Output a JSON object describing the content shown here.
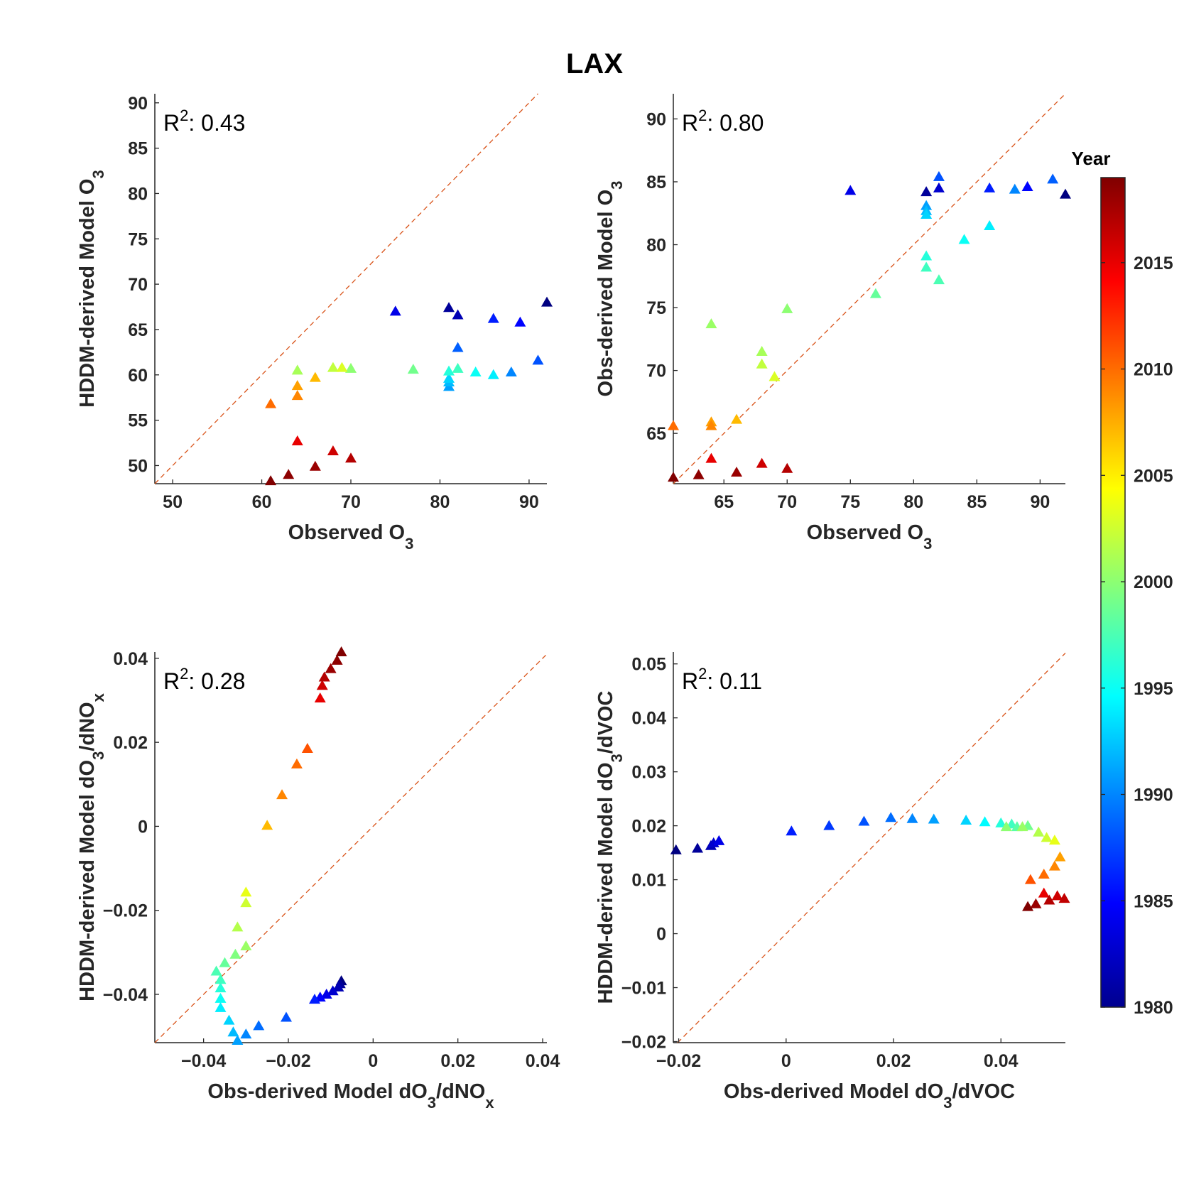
{
  "figure_title": "LAX",
  "colorbar": {
    "title": "Year",
    "min": 1980,
    "max": 2019,
    "ticks": [
      1980,
      1985,
      1990,
      1995,
      2000,
      2005,
      2010,
      2015
    ]
  },
  "chart_data": [
    {
      "type": "scatter",
      "xlabel": {
        "main": "Observed O",
        "sub": "3",
        "tail": ""
      },
      "ylabel": {
        "main": "HDDM-derived Model O",
        "sub": "3",
        "tail": ""
      },
      "annotation": {
        "text": "R",
        "sup": "2",
        "rest": ": 0.43"
      },
      "xlim": [
        48,
        92
      ],
      "ylim": [
        48,
        91
      ],
      "xticks": [
        50,
        60,
        70,
        80,
        90
      ],
      "yticks": [
        50,
        55,
        60,
        65,
        70,
        75,
        80,
        85,
        90
      ],
      "one_to_one_line": true,
      "series": [
        {
          "name": "",
          "points": [
            {
              "x": 92,
              "y": 68,
              "year": 1980
            },
            {
              "x": 81,
              "y": 67.4,
              "year": 1981
            },
            {
              "x": 82,
              "y": 66.6,
              "year": 1982
            },
            {
              "x": 75,
              "y": 67,
              "year": 1984
            },
            {
              "x": 89,
              "y": 65.8,
              "year": 1985
            },
            {
              "x": 86,
              "y": 66.2,
              "year": 1986
            },
            {
              "x": 91,
              "y": 61.6,
              "year": 1988
            },
            {
              "x": 82,
              "y": 63,
              "year": 1988.5
            },
            {
              "x": 88,
              "y": 60.3,
              "year": 1990
            },
            {
              "x": 81,
              "y": 58.7,
              "year": 1991
            },
            {
              "x": 81,
              "y": 59.2,
              "year": 1992
            },
            {
              "x": 81,
              "y": 59.6,
              "year": 1993
            },
            {
              "x": 86,
              "y": 60,
              "year": 1994
            },
            {
              "x": 84,
              "y": 60.3,
              "year": 1995
            },
            {
              "x": 81,
              "y": 60.4,
              "year": 1996
            },
            {
              "x": 82,
              "y": 60.7,
              "year": 1997
            },
            {
              "x": 77,
              "y": 60.6,
              "year": 1999
            },
            {
              "x": 70,
              "y": 60.7,
              "year": 2000
            },
            {
              "x": 64,
              "y": 60.5,
              "year": 2001
            },
            {
              "x": 68,
              "y": 60.8,
              "year": 2002
            },
            {
              "x": 69,
              "y": 60.8,
              "year": 2003
            },
            {
              "x": 66,
              "y": 59.7,
              "year": 2007
            },
            {
              "x": 64,
              "y": 58.8,
              "year": 2008
            },
            {
              "x": 64,
              "y": 57.7,
              "year": 2009
            },
            {
              "x": 61,
              "y": 56.8,
              "year": 2010
            },
            {
              "x": 64,
              "y": 52.7,
              "year": 2015
            },
            {
              "x": 68,
              "y": 51.6,
              "year": 2016
            },
            {
              "x": 70,
              "y": 50.8,
              "year": 2017
            },
            {
              "x": 66,
              "y": 49.9,
              "year": 2018
            },
            {
              "x": 63,
              "y": 49,
              "year": 2018.5
            },
            {
              "x": 61,
              "y": 48.3,
              "year": 2019
            }
          ]
        }
      ]
    },
    {
      "type": "scatter",
      "xlabel": {
        "main": "Observed O",
        "sub": "3",
        "tail": ""
      },
      "ylabel": {
        "main": "Obs-derived Model O",
        "sub": "3",
        "tail": ""
      },
      "annotation": {
        "text": "R",
        "sup": "2",
        "rest": ": 0.80"
      },
      "xlim": [
        61,
        92
      ],
      "ylim": [
        61,
        92
      ],
      "xticks": [
        65,
        70,
        75,
        80,
        85,
        90
      ],
      "yticks": [
        65,
        70,
        75,
        80,
        85,
        90
      ],
      "one_to_one_line": true,
      "series": [
        {
          "name": "",
          "points": [
            {
              "x": 92,
              "y": 84,
              "year": 1980
            },
            {
              "x": 81,
              "y": 84.2,
              "year": 1981
            },
            {
              "x": 82,
              "y": 84.5,
              "year": 1983
            },
            {
              "x": 75,
              "y": 84.3,
              "year": 1984
            },
            {
              "x": 89,
              "y": 84.6,
              "year": 1985
            },
            {
              "x": 86,
              "y": 84.5,
              "year": 1986
            },
            {
              "x": 82,
              "y": 85.4,
              "year": 1988
            },
            {
              "x": 91,
              "y": 85.2,
              "year": 1988.5
            },
            {
              "x": 88,
              "y": 84.4,
              "year": 1990
            },
            {
              "x": 81,
              "y": 83.1,
              "year": 1991
            },
            {
              "x": 81,
              "y": 82.7,
              "year": 1992
            },
            {
              "x": 81,
              "y": 82.4,
              "year": 1993
            },
            {
              "x": 86,
              "y": 81.5,
              "year": 1994
            },
            {
              "x": 84,
              "y": 80.4,
              "year": 1995
            },
            {
              "x": 81,
              "y": 79.1,
              "year": 1996
            },
            {
              "x": 81,
              "y": 78.2,
              "year": 1997
            },
            {
              "x": 82,
              "y": 77.2,
              "year": 1997.5
            },
            {
              "x": 77,
              "y": 76.1,
              "year": 1998.5
            },
            {
              "x": 70,
              "y": 74.9,
              "year": 2000
            },
            {
              "x": 64,
              "y": 73.7,
              "year": 2000.5
            },
            {
              "x": 68,
              "y": 71.5,
              "year": 2001
            },
            {
              "x": 68,
              "y": 70.5,
              "year": 2002
            },
            {
              "x": 69,
              "y": 69.5,
              "year": 2003
            },
            {
              "x": 66,
              "y": 66.1,
              "year": 2007
            },
            {
              "x": 64,
              "y": 65.9,
              "year": 2008
            },
            {
              "x": 64,
              "y": 65.6,
              "year": 2009
            },
            {
              "x": 61,
              "y": 65.6,
              "year": 2010
            },
            {
              "x": 64,
              "y": 63,
              "year": 2015
            },
            {
              "x": 68,
              "y": 62.6,
              "year": 2016
            },
            {
              "x": 70,
              "y": 62.2,
              "year": 2017
            },
            {
              "x": 66,
              "y": 61.9,
              "year": 2018
            },
            {
              "x": 63,
              "y": 61.7,
              "year": 2018.5
            },
            {
              "x": 61,
              "y": 61.5,
              "year": 2019
            }
          ]
        }
      ]
    },
    {
      "type": "scatter",
      "xlabel": {
        "main": "Obs-derived Model dO",
        "sub": "3",
        "tail": "/dNO",
        "sub2": "x"
      },
      "ylabel": {
        "main": "HDDM-derived Model dO",
        "sub": "3",
        "tail": "/dNO",
        "sub2": "x"
      },
      "annotation": {
        "text": "R",
        "sup": "2",
        "rest": ": 0.28"
      },
      "xlim": [
        -0.0515,
        0.041
      ],
      "ylim": [
        -0.0515,
        0.0415
      ],
      "xticks": [
        -0.04,
        -0.02,
        0,
        0.02,
        0.04
      ],
      "yticks": [
        -0.04,
        -0.02,
        0,
        0.02,
        0.04
      ],
      "one_to_one_line": true,
      "series": [
        {
          "name": "",
          "points": [
            {
              "x": -0.0075,
              "y": -0.0368,
              "year": 1980
            },
            {
              "x": -0.0078,
              "y": -0.0375,
              "year": 1981
            },
            {
              "x": -0.0082,
              "y": -0.0383,
              "year": 1982
            },
            {
              "x": -0.0095,
              "y": -0.0392,
              "year": 1983
            },
            {
              "x": -0.011,
              "y": -0.04,
              "year": 1984
            },
            {
              "x": -0.0125,
              "y": -0.0407,
              "year": 1985
            },
            {
              "x": -0.0138,
              "y": -0.0412,
              "year": 1986
            },
            {
              "x": -0.0205,
              "y": -0.0455,
              "year": 1988
            },
            {
              "x": -0.027,
              "y": -0.0475,
              "year": 1989
            },
            {
              "x": -0.03,
              "y": -0.0495,
              "year": 1990
            },
            {
              "x": -0.032,
              "y": -0.051,
              "year": 1991
            },
            {
              "x": -0.033,
              "y": -0.049,
              "year": 1992
            },
            {
              "x": -0.034,
              "y": -0.0462,
              "year": 1993
            },
            {
              "x": -0.036,
              "y": -0.0432,
              "year": 1994
            },
            {
              "x": -0.036,
              "y": -0.041,
              "year": 1995
            },
            {
              "x": -0.036,
              "y": -0.0385,
              "year": 1996
            },
            {
              "x": -0.036,
              "y": -0.0365,
              "year": 1997
            },
            {
              "x": -0.037,
              "y": -0.0345,
              "year": 1997.5
            },
            {
              "x": -0.035,
              "y": -0.0325,
              "year": 1998.5
            },
            {
              "x": -0.0325,
              "y": -0.0305,
              "year": 1999.5
            },
            {
              "x": -0.03,
              "y": -0.0285,
              "year": 2000.5
            },
            {
              "x": -0.032,
              "y": -0.024,
              "year": 2001.5
            },
            {
              "x": -0.03,
              "y": -0.0182,
              "year": 2002.5
            },
            {
              "x": -0.03,
              "y": -0.0157,
              "year": 2003.5
            },
            {
              "x": -0.025,
              "y": 0.0002,
              "year": 2007
            },
            {
              "x": -0.0215,
              "y": 0.0075,
              "year": 2009
            },
            {
              "x": -0.018,
              "y": 0.0148,
              "year": 2010
            },
            {
              "x": -0.0155,
              "y": 0.0185,
              "year": 2011
            },
            {
              "x": -0.0125,
              "y": 0.0305,
              "year": 2015
            },
            {
              "x": -0.012,
              "y": 0.0335,
              "year": 2016
            },
            {
              "x": -0.0115,
              "y": 0.0355,
              "year": 2017
            },
            {
              "x": -0.01,
              "y": 0.0375,
              "year": 2018
            },
            {
              "x": -0.0085,
              "y": 0.0395,
              "year": 2018.5
            },
            {
              "x": -0.0075,
              "y": 0.0415,
              "year": 2019
            }
          ]
        }
      ]
    },
    {
      "type": "scatter",
      "xlabel": {
        "main": "Obs-derived Model dO",
        "sub": "3",
        "tail": "/dVOC",
        "sub2": ""
      },
      "ylabel": {
        "main": "HDDM-derived Model dO",
        "sub": "3",
        "tail": "/dVOC",
        "sub2": ""
      },
      "annotation": {
        "text": "R",
        "sup": "2",
        "rest": ": 0.11"
      },
      "xlim": [
        -0.021,
        0.052
      ],
      "ylim": [
        -0.0202,
        0.0522
      ],
      "xticks": [
        -0.02,
        0,
        0.02,
        0.04
      ],
      "yticks": [
        -0.02,
        -0.01,
        0,
        0.01,
        0.02,
        0.03,
        0.04,
        0.05
      ],
      "one_to_one_line": true,
      "series": [
        {
          "name": "",
          "points": [
            {
              "x": -0.0205,
              "y": 0.0155,
              "year": 1980
            },
            {
              "x": -0.0165,
              "y": 0.0158,
              "year": 1981
            },
            {
              "x": -0.014,
              "y": 0.0163,
              "year": 1982
            },
            {
              "x": -0.0135,
              "y": 0.0168,
              "year": 1983
            },
            {
              "x": -0.0125,
              "y": 0.0172,
              "year": 1984
            },
            {
              "x": 0.001,
              "y": 0.019,
              "year": 1986
            },
            {
              "x": 0.008,
              "y": 0.02,
              "year": 1987
            },
            {
              "x": 0.0145,
              "y": 0.0208,
              "year": 1988
            },
            {
              "x": 0.0195,
              "y": 0.0215,
              "year": 1989
            },
            {
              "x": 0.0235,
              "y": 0.0213,
              "year": 1990
            },
            {
              "x": 0.0275,
              "y": 0.0212,
              "year": 1991
            },
            {
              "x": 0.0335,
              "y": 0.021,
              "year": 1993
            },
            {
              "x": 0.037,
              "y": 0.0207,
              "year": 1994.5
            },
            {
              "x": 0.04,
              "y": 0.0205,
              "year": 1996
            },
            {
              "x": 0.042,
              "y": 0.0203,
              "year": 1997
            },
            {
              "x": 0.043,
              "y": 0.0198,
              "year": 1998
            },
            {
              "x": 0.045,
              "y": 0.02,
              "year": 1999
            },
            {
              "x": 0.041,
              "y": 0.0198,
              "year": 2000
            },
            {
              "x": 0.044,
              "y": 0.0198,
              "year": 2000.5
            },
            {
              "x": 0.047,
              "y": 0.0188,
              "year": 2001.5
            },
            {
              "x": 0.0485,
              "y": 0.0178,
              "year": 2002.5
            },
            {
              "x": 0.05,
              "y": 0.0173,
              "year": 2003.5
            },
            {
              "x": 0.051,
              "y": 0.0142,
              "year": 2008
            },
            {
              "x": 0.05,
              "y": 0.0125,
              "year": 2009
            },
            {
              "x": 0.048,
              "y": 0.011,
              "year": 2010
            },
            {
              "x": 0.0455,
              "y": 0.01,
              "year": 2011
            },
            {
              "x": 0.048,
              "y": 0.0075,
              "year": 2015
            },
            {
              "x": 0.0505,
              "y": 0.007,
              "year": 2016
            },
            {
              "x": 0.0518,
              "y": 0.0065,
              "year": 2016.5
            },
            {
              "x": 0.049,
              "y": 0.0062,
              "year": 2017
            },
            {
              "x": 0.0465,
              "y": 0.0055,
              "year": 2018
            },
            {
              "x": 0.045,
              "y": 0.005,
              "year": 2019
            }
          ]
        }
      ]
    }
  ]
}
